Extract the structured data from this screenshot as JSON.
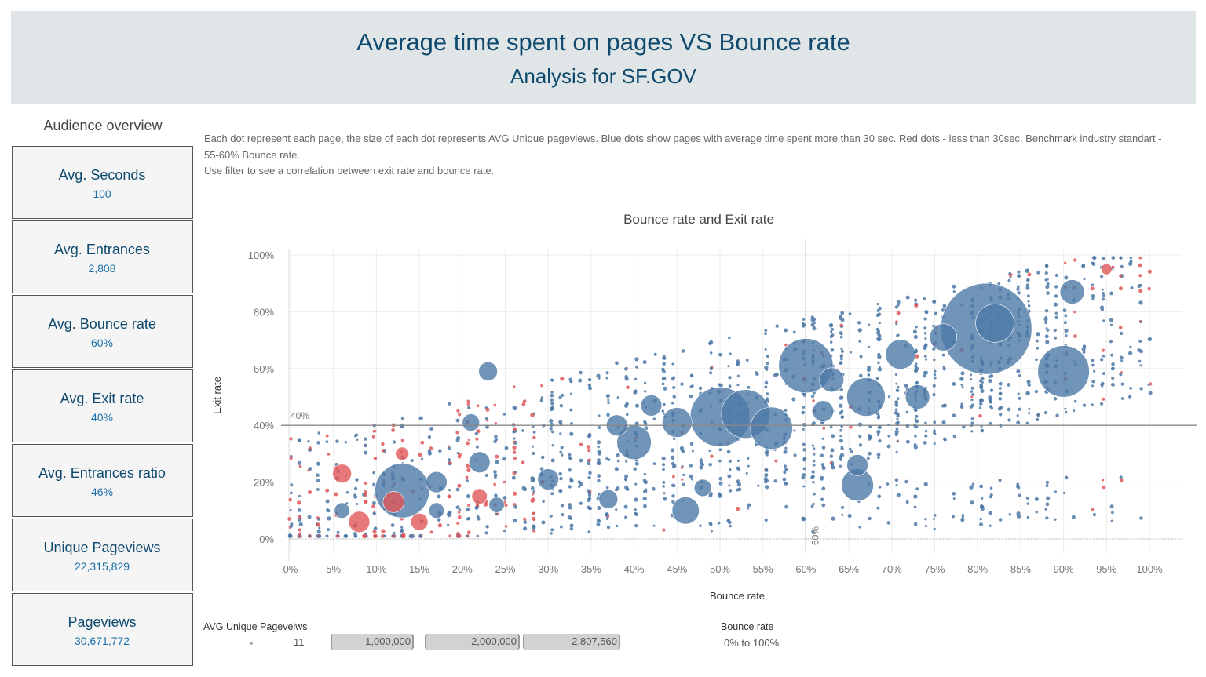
{
  "header": {
    "title": "Average time spent on pages VS Bounce rate",
    "subtitle": "Analysis for SF.GOV"
  },
  "audience": {
    "title": "Audience overview",
    "kpis": [
      {
        "label": "Avg. Seconds",
        "value": "100"
      },
      {
        "label": "Avg. Entrances",
        "value": "2,808"
      },
      {
        "label": "Avg. Bounce rate",
        "value": "60%"
      },
      {
        "label": "Avg. Exit rate",
        "value": "40%"
      },
      {
        "label": "Avg. Entrances ratio",
        "value": "46%"
      },
      {
        "label": "Unique Pageviews",
        "value": "22,315,829"
      },
      {
        "label": "Pageviews",
        "value": "30,671,772"
      }
    ]
  },
  "description": {
    "line1": "Each dot represent each page, the size of each dot represents AVG Unique pageviews. Blue dots show  pages with average time spent more than 30 sec. Red dots - less than 30sec.  Benchmark industry standart - 55-60% Bounce rate.",
    "line2": "Use filter  to see a correlation between exit rate and bounce rate."
  },
  "legend": {
    "title": "AVG Unique Pageveiws",
    "items": [
      "11",
      "1,000,000",
      "2,000,000",
      "2,807,560"
    ]
  },
  "filter": {
    "title": "Bounce rate",
    "value": "0% to 100%"
  },
  "colors": {
    "blue": "#4e79a7",
    "red": "#e15759",
    "title": "#0f4a6e",
    "kpi_value": "#1a6fa8"
  },
  "chart_data": {
    "type": "scatter",
    "title": "Bounce rate and Exit rate",
    "xlabel": "Bounce rate",
    "ylabel": "Exit rate",
    "xlim": [
      0,
      1
    ],
    "ylim": [
      0,
      1
    ],
    "x_ticks": [
      "0%",
      "5%",
      "10%",
      "15%",
      "20%",
      "25%",
      "30%",
      "35%",
      "40%",
      "45%",
      "50%",
      "55%",
      "60%",
      "65%",
      "70%",
      "75%",
      "80%",
      "85%",
      "90%",
      "95%",
      "100%"
    ],
    "y_ticks": [
      "0%",
      "20%",
      "40%",
      "60%",
      "80%",
      "100%"
    ],
    "reference_lines": [
      {
        "axis": "x",
        "value": 0.6,
        "label": "60%"
      },
      {
        "axis": "y",
        "value": 0.4,
        "label": "40%"
      }
    ],
    "grid": true,
    "size_encoding": "AVG Unique Pageviews",
    "color_encoding": "blue: avg time > 30 sec, red: avg time < 30 sec",
    "highlighted_points": [
      {
        "x": 0.81,
        "y": 0.74,
        "size": 2807560,
        "color": "blue"
      },
      {
        "x": 0.6,
        "y": 0.61,
        "size": 1000000,
        "color": "blue"
      },
      {
        "x": 0.9,
        "y": 0.59,
        "size": 900000,
        "color": "blue"
      },
      {
        "x": 0.13,
        "y": 0.17,
        "size": 1000000,
        "color": "blue"
      },
      {
        "x": 0.5,
        "y": 0.43,
        "size": 1200000,
        "color": "blue"
      },
      {
        "x": 0.53,
        "y": 0.44,
        "size": 800000,
        "color": "blue"
      },
      {
        "x": 0.67,
        "y": 0.5,
        "size": 500000,
        "color": "blue"
      },
      {
        "x": 0.56,
        "y": 0.39,
        "size": 600000,
        "color": "blue"
      },
      {
        "x": 0.23,
        "y": 0.59,
        "size": 120000,
        "color": "blue"
      },
      {
        "x": 0.4,
        "y": 0.34,
        "size": 400000,
        "color": "blue"
      },
      {
        "x": 0.45,
        "y": 0.41,
        "size": 300000,
        "color": "blue"
      },
      {
        "x": 0.46,
        "y": 0.1,
        "size": 250000,
        "color": "blue"
      },
      {
        "x": 0.66,
        "y": 0.19,
        "size": 350000,
        "color": "blue"
      },
      {
        "x": 0.71,
        "y": 0.65,
        "size": 300000,
        "color": "blue"
      },
      {
        "x": 0.73,
        "y": 0.5,
        "size": 200000,
        "color": "blue"
      },
      {
        "x": 0.76,
        "y": 0.71,
        "size": 250000,
        "color": "blue"
      },
      {
        "x": 0.82,
        "y": 0.76,
        "size": 500000,
        "color": "blue"
      },
      {
        "x": 0.91,
        "y": 0.87,
        "size": 200000,
        "color": "blue"
      },
      {
        "x": 0.08,
        "y": 0.06,
        "size": 150000,
        "color": "red"
      },
      {
        "x": 0.06,
        "y": 0.23,
        "size": 120000,
        "color": "red"
      },
      {
        "x": 0.15,
        "y": 0.06,
        "size": 100000,
        "color": "red"
      },
      {
        "x": 0.12,
        "y": 0.13,
        "size": 150000,
        "color": "red"
      },
      {
        "x": 0.22,
        "y": 0.15,
        "size": 80000,
        "color": "red"
      },
      {
        "x": 0.13,
        "y": 0.3,
        "size": 60000,
        "color": "red"
      },
      {
        "x": 0.95,
        "y": 0.95,
        "size": 40000,
        "color": "red"
      },
      {
        "x": 0.21,
        "y": 0.41,
        "size": 100000,
        "color": "blue"
      },
      {
        "x": 0.17,
        "y": 0.2,
        "size": 150000,
        "color": "blue"
      },
      {
        "x": 0.22,
        "y": 0.27,
        "size": 150000,
        "color": "blue"
      },
      {
        "x": 0.38,
        "y": 0.4,
        "size": 150000,
        "color": "blue"
      },
      {
        "x": 0.42,
        "y": 0.47,
        "size": 150000,
        "color": "blue"
      },
      {
        "x": 0.3,
        "y": 0.21,
        "size": 150000,
        "color": "blue"
      },
      {
        "x": 0.37,
        "y": 0.14,
        "size": 120000,
        "color": "blue"
      },
      {
        "x": 0.48,
        "y": 0.18,
        "size": 100000,
        "color": "blue"
      },
      {
        "x": 0.66,
        "y": 0.26,
        "size": 150000,
        "color": "blue"
      },
      {
        "x": 0.63,
        "y": 0.56,
        "size": 200000,
        "color": "blue"
      },
      {
        "x": 0.62,
        "y": 0.45,
        "size": 150000,
        "color": "blue"
      },
      {
        "x": 0.06,
        "y": 0.1,
        "size": 80000,
        "color": "blue"
      },
      {
        "x": 0.17,
        "y": 0.1,
        "size": 80000,
        "color": "blue"
      },
      {
        "x": 0.24,
        "y": 0.12,
        "size": 80000,
        "color": "blue"
      }
    ]
  }
}
